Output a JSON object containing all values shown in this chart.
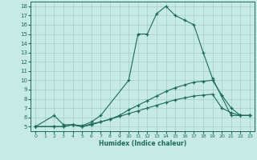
{
  "xlabel": "Humidex (Indice chaleur)",
  "xlim": [
    -0.5,
    23.5
  ],
  "ylim": [
    4.5,
    18.5
  ],
  "yticks": [
    5,
    6,
    7,
    8,
    9,
    10,
    11,
    12,
    13,
    14,
    15,
    16,
    17,
    18
  ],
  "xticks": [
    0,
    1,
    2,
    3,
    4,
    5,
    6,
    7,
    8,
    9,
    10,
    11,
    12,
    13,
    14,
    15,
    16,
    17,
    18,
    19,
    20,
    21,
    22,
    23
  ],
  "bg_color": "#c8eae4",
  "grid_color": "#a0d0c8",
  "line_color": "#1a6b5a",
  "lines": [
    {
      "x": [
        0,
        2,
        3,
        4,
        5,
        6,
        7,
        10,
        11,
        12,
        13,
        14,
        15,
        16,
        17,
        18,
        19,
        21,
        22,
        23
      ],
      "y": [
        5,
        6.2,
        5.2,
        5.2,
        5.1,
        5.5,
        6.2,
        10.0,
        15.0,
        15.0,
        17.2,
        18.0,
        17.0,
        16.5,
        16.0,
        13.0,
        10.2,
        6.2,
        6.2,
        6.2
      ]
    },
    {
      "x": [
        0,
        2,
        3,
        4,
        5,
        6,
        7,
        8,
        9,
        10,
        11,
        12,
        13,
        14,
        15,
        16,
        17,
        18,
        19,
        20,
        21,
        22,
        23
      ],
      "y": [
        5,
        5.0,
        5.0,
        5.2,
        5.0,
        5.3,
        5.5,
        5.8,
        6.2,
        6.8,
        7.3,
        7.8,
        8.3,
        8.8,
        9.2,
        9.5,
        9.8,
        9.9,
        10.0,
        8.4,
        7.0,
        6.2,
        6.2
      ]
    },
    {
      "x": [
        0,
        2,
        3,
        4,
        5,
        6,
        7,
        8,
        9,
        10,
        11,
        12,
        13,
        14,
        15,
        16,
        17,
        18,
        19,
        20,
        21,
        22,
        23
      ],
      "y": [
        5,
        5.0,
        5.0,
        5.2,
        5.0,
        5.2,
        5.5,
        5.8,
        6.1,
        6.4,
        6.7,
        7.0,
        7.3,
        7.6,
        7.9,
        8.1,
        8.3,
        8.4,
        8.5,
        7.0,
        6.5,
        6.2,
        6.2
      ]
    }
  ]
}
